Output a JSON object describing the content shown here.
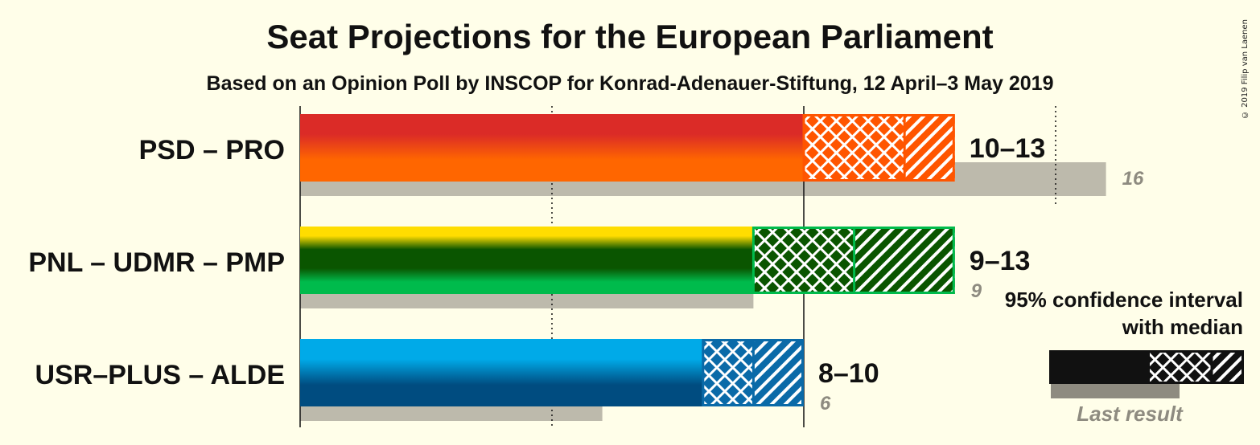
{
  "header": {
    "title": "Seat Projections for the European Parliament",
    "subtitle": "Based on an Opinion Poll by INSCOP for Konrad-Adenauer-Stiftung, 12 April–3 May 2019",
    "copyright": "© 2019 Filip van Laenen"
  },
  "chart_data": {
    "type": "bar",
    "orientation": "horizontal",
    "title": "Seat Projections for the European Parliament",
    "subtitle": "Based on an Opinion Poll by INSCOP for Konrad-Adenauer-Stiftung, 12 April–3 May 2019",
    "xlim": [
      0,
      16
    ],
    "gridlines_solid": [
      0,
      10
    ],
    "gridlines_dotted": [
      5,
      15
    ],
    "parties": [
      {
        "name": "PSD – PRO",
        "low": 10,
        "median": 12,
        "high": 13,
        "range_label": "10–13",
        "last_result": 16,
        "last_result_label": "16",
        "colors": {
          "top": "#DB2B27",
          "bottom": "#FF6600",
          "accent": "#FF5500"
        }
      },
      {
        "name": "PNL – UDMR – PMP",
        "low": 9,
        "median": 11,
        "high": 13,
        "range_label": "9–13",
        "last_result": 9,
        "last_result_label": "9",
        "colors": {
          "top": "#FFDD00",
          "middle": "#0A5500",
          "bottom": "#00BB4C",
          "accent": "#00BB4C"
        }
      },
      {
        "name": "USR–PLUS – ALDE",
        "low": 8,
        "median": 9,
        "high": 10,
        "range_label": "8–10",
        "last_result": 6,
        "last_result_label": "6",
        "colors": {
          "top": "#00AAE8",
          "bottom": "#004C80",
          "accent": "#0A6AA8"
        }
      }
    ]
  },
  "legend": {
    "line1": "95% confidence interval",
    "line2": "with median",
    "last_result": "Last result"
  },
  "colors": {
    "background": "#FFFEE9",
    "last_result_bar": "#BDBAAC",
    "text": "#111111",
    "muted": "#8E8B80"
  }
}
